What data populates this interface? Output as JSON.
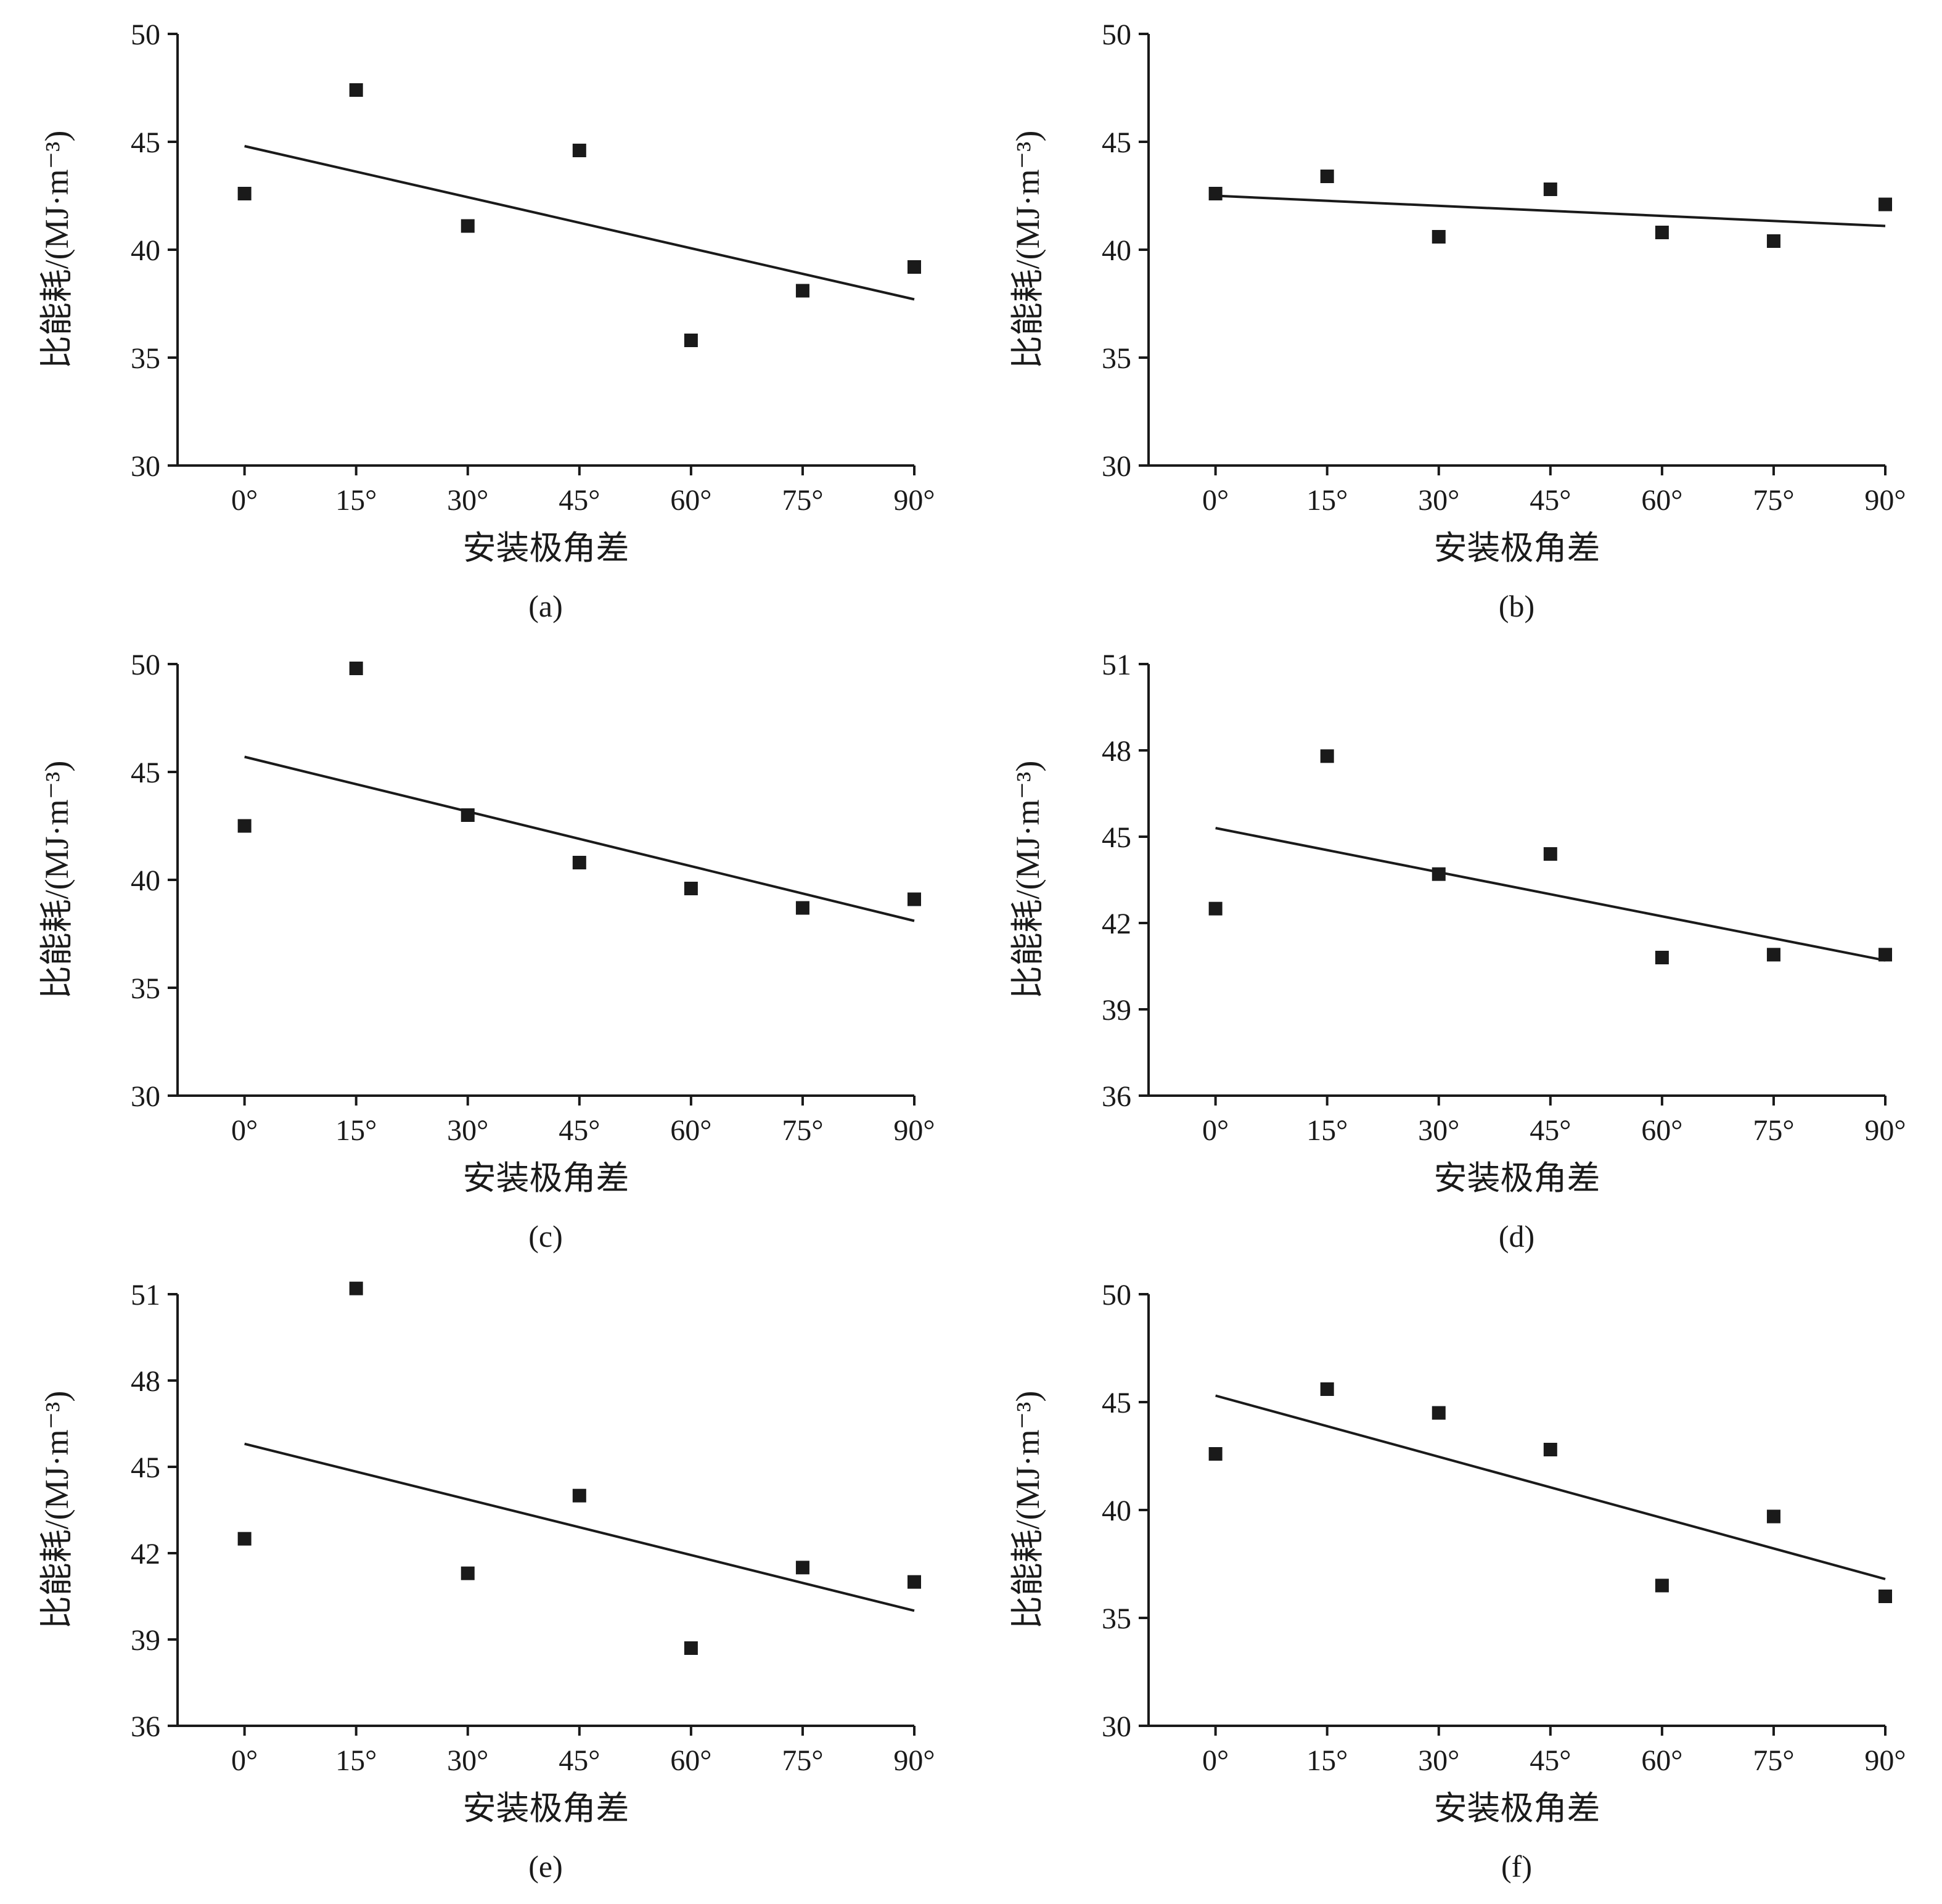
{
  "figure": {
    "background": "#ffffff",
    "marker_color": "#1a1a1a",
    "line_color": "#1a1a1a"
  },
  "chart_data": [
    {
      "id": "a",
      "label": "(a)",
      "type": "scatter",
      "title": "",
      "xlabel": "安装极角差",
      "ylabel": "比能耗/(MJ·m⁻³)",
      "categories": [
        "0°",
        "15°",
        "30°",
        "45°",
        "60°",
        "75°",
        "90°"
      ],
      "x": [
        0,
        15,
        30,
        45,
        60,
        75,
        90
      ],
      "values": [
        42.6,
        47.4,
        41.1,
        44.6,
        35.8,
        38.1,
        39.2
      ],
      "trendline": {
        "x0": 0,
        "y0": 44.8,
        "x1": 90,
        "y1": 37.7
      },
      "ylim": [
        30,
        50
      ],
      "yticks": [
        30,
        35,
        40,
        45,
        50
      ],
      "xlim": [
        -9,
        90
      ],
      "grid": false,
      "legend": "none",
      "marker": "square"
    },
    {
      "id": "b",
      "label": "(b)",
      "type": "scatter",
      "title": "",
      "xlabel": "安装极角差",
      "ylabel": "比能耗/(MJ·m⁻³)",
      "categories": [
        "0°",
        "15°",
        "30°",
        "45°",
        "60°",
        "75°",
        "90°"
      ],
      "x": [
        0,
        15,
        30,
        45,
        60,
        75,
        90
      ],
      "values": [
        42.6,
        43.4,
        40.6,
        42.8,
        40.8,
        40.4,
        42.1
      ],
      "trendline": {
        "x0": 0,
        "y0": 42.5,
        "x1": 90,
        "y1": 41.1
      },
      "ylim": [
        30,
        50
      ],
      "yticks": [
        30,
        35,
        40,
        45,
        50
      ],
      "xlim": [
        -9,
        90
      ],
      "grid": false,
      "legend": "none",
      "marker": "square"
    },
    {
      "id": "c",
      "label": "(c)",
      "type": "scatter",
      "title": "",
      "xlabel": "安装极角差",
      "ylabel": "比能耗/(MJ·m⁻³)",
      "categories": [
        "0°",
        "15°",
        "30°",
        "45°",
        "60°",
        "75°",
        "90°"
      ],
      "x": [
        0,
        15,
        30,
        45,
        60,
        75,
        90
      ],
      "values": [
        42.5,
        49.8,
        43.0,
        40.8,
        39.6,
        38.7,
        39.1
      ],
      "trendline": {
        "x0": 0,
        "y0": 45.7,
        "x1": 90,
        "y1": 38.1
      },
      "ylim": [
        30,
        50
      ],
      "yticks": [
        30,
        35,
        40,
        45,
        50
      ],
      "xlim": [
        -9,
        90
      ],
      "grid": false,
      "legend": "none",
      "marker": "square"
    },
    {
      "id": "d",
      "label": "(d)",
      "type": "scatter",
      "title": "",
      "xlabel": "安装极角差",
      "ylabel": "比能耗/(MJ·m⁻³)",
      "categories": [
        "0°",
        "15°",
        "30°",
        "45°",
        "60°",
        "75°",
        "90°"
      ],
      "x": [
        0,
        15,
        30,
        45,
        60,
        75,
        90
      ],
      "values": [
        42.5,
        47.8,
        43.7,
        44.4,
        40.8,
        40.9,
        40.9
      ],
      "trendline": {
        "x0": 0,
        "y0": 45.3,
        "x1": 90,
        "y1": 40.7
      },
      "ylim": [
        36,
        51
      ],
      "yticks": [
        36,
        39,
        42,
        45,
        48,
        51
      ],
      "xlim": [
        -9,
        90
      ],
      "grid": false,
      "legend": "none",
      "marker": "square"
    },
    {
      "id": "e",
      "label": "(e)",
      "type": "scatter",
      "title": "",
      "xlabel": "安装极角差",
      "ylabel": "比能耗/(MJ·m⁻³)",
      "categories": [
        "0°",
        "15°",
        "30°",
        "45°",
        "60°",
        "75°",
        "90°"
      ],
      "x": [
        0,
        15,
        30,
        45,
        60,
        75,
        90
      ],
      "values": [
        42.5,
        51.2,
        41.3,
        44.0,
        38.7,
        41.5,
        41.0
      ],
      "trendline": {
        "x0": 0,
        "y0": 45.8,
        "x1": 90,
        "y1": 40.0
      },
      "ylim": [
        36,
        51
      ],
      "yticks": [
        36,
        39,
        42,
        45,
        48,
        51
      ],
      "xlim": [
        -9,
        90
      ],
      "grid": false,
      "legend": "none",
      "marker": "square"
    },
    {
      "id": "f",
      "label": "(f)",
      "type": "scatter",
      "title": "",
      "xlabel": "安装极角差",
      "ylabel": "比能耗/(MJ·m⁻³)",
      "categories": [
        "0°",
        "15°",
        "30°",
        "45°",
        "60°",
        "75°",
        "90°"
      ],
      "x": [
        0,
        15,
        30,
        45,
        60,
        75,
        90
      ],
      "values": [
        42.6,
        45.6,
        44.5,
        42.8,
        36.5,
        39.7,
        36.0
      ],
      "trendline": {
        "x0": 0,
        "y0": 45.3,
        "x1": 90,
        "y1": 36.8
      },
      "ylim": [
        30,
        50
      ],
      "yticks": [
        30,
        35,
        40,
        45,
        50
      ],
      "xlim": [
        -9,
        90
      ],
      "grid": false,
      "legend": "none",
      "marker": "square"
    }
  ]
}
